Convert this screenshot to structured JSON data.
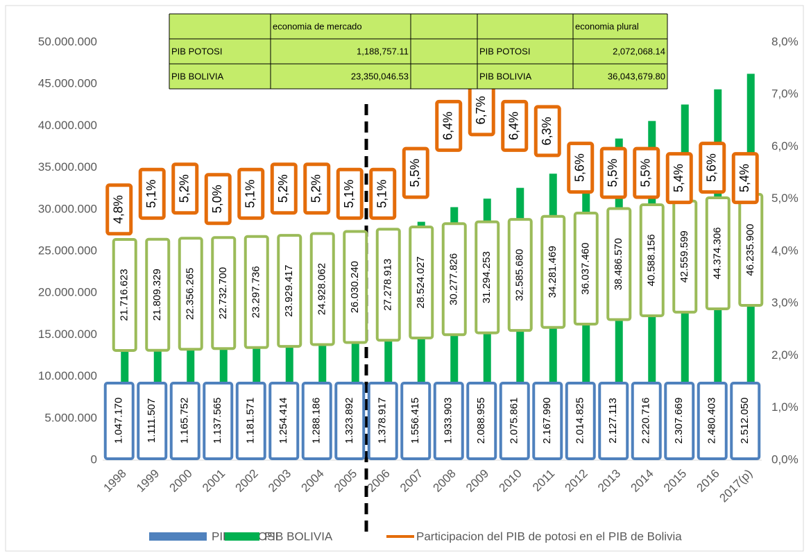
{
  "chart_data": {
    "type": "bar",
    "categories": [
      "1998",
      "1999",
      "2000",
      "2001",
      "2002",
      "2003",
      "2004",
      "2005",
      "2006",
      "2007",
      "2008",
      "2009",
      "2010",
      "2011",
      "2012",
      "2013",
      "2014",
      "2015",
      "2016",
      "2017(p)"
    ],
    "series": [
      {
        "name": "PIB POTOSI",
        "color": "#4f81bd",
        "values": [
          1047170,
          1111507,
          1165752,
          1137565,
          1181571,
          1254414,
          1288186,
          1323892,
          1378917,
          1556415,
          1933903,
          2088955,
          2075861,
          2167990,
          2014825,
          2127113,
          2220716,
          2307669,
          2480403,
          2512050
        ],
        "value_labels": [
          "1.047.170",
          "1.111.507",
          "1.165.752",
          "1.137.565",
          "1.181.571",
          "1.254.414",
          "1.288.186",
          "1.323.892",
          "1.378.917",
          "1.556.415",
          "1.933.903",
          "2.088.955",
          "2.075.861",
          "2.167.990",
          "2.014.825",
          "2.127.113",
          "2.220.716",
          "2.307.669",
          "2.480.403",
          "2.512.050"
        ]
      },
      {
        "name": "PIB BOLIVIA",
        "color": "#00b050",
        "values": [
          21716623,
          21809329,
          22356265,
          22732700,
          23297736,
          23929417,
          24928062,
          26030240,
          27278913,
          28524027,
          30277826,
          31294253,
          32585680,
          34281469,
          36037460,
          38486570,
          40588156,
          42559599,
          44374306,
          46235900
        ],
        "value_labels": [
          "21.716.623",
          "21.809.329",
          "22.356.265",
          "22.732.700",
          "23.297.736",
          "23.929.417",
          "24.928.062",
          "26.030.240",
          "27.278.913",
          "28.524.027",
          "30.277.826",
          "31.294.253",
          "32.585.680",
          "34.281.469",
          "36.037.460",
          "38.486.570",
          "40.588.156",
          "42.559.599",
          "44.374.306",
          "46.235.900"
        ]
      },
      {
        "name": "Participacion del PIB de potosi en el PIB de Bolivia",
        "color": "#e46c0a",
        "axis": "y2",
        "type": "line",
        "values": [
          4.8,
          5.1,
          5.2,
          5.0,
          5.1,
          5.2,
          5.2,
          5.1,
          5.1,
          5.5,
          6.4,
          6.7,
          6.4,
          6.3,
          5.6,
          5.5,
          5.5,
          5.4,
          5.6,
          5.4
        ],
        "value_labels": [
          "4,8%",
          "5,1%",
          "5,2%",
          "5,0%",
          "5,1%",
          "5,2%",
          "5,2%",
          "5,1%",
          "5,1%",
          "5,5%",
          "6,4%",
          "6,7%",
          "6,4%",
          "6,3%",
          "5,6%",
          "5,5%",
          "5,5%",
          "5,4%",
          "5,6%",
          "5,4%"
        ]
      }
    ],
    "ylim": [
      0,
      50000000
    ],
    "yticks": [
      0,
      {
        "value": 5000000,
        "label": "5.000.000"
      },
      {
        "value": 10000000,
        "label": "10.000.000"
      },
      {
        "value": 15000000,
        "label": "15.000.000"
      },
      {
        "value": 20000000,
        "label": "20.000.000"
      },
      {
        "value": 25000000,
        "label": "25.000.000"
      },
      {
        "value": 30000000,
        "label": "30.000.000"
      },
      {
        "value": 35000000,
        "label": "35.000.000"
      },
      {
        "value": 40000000,
        "label": "40.000.000"
      },
      {
        "value": 45000000,
        "label": "45.000.000"
      },
      {
        "value": 50000000,
        "label": "50.000.000"
      }
    ],
    "y2lim": [
      0,
      8
    ],
    "y2ticks": [
      {
        "value": 0,
        "label": "0,0%"
      },
      {
        "value": 1,
        "label": "1,0%"
      },
      {
        "value": 2,
        "label": "2,0%"
      },
      {
        "value": 3,
        "label": "3,0%"
      },
      {
        "value": 4,
        "label": "4,0%"
      },
      {
        "value": 5,
        "label": "5,0%"
      },
      {
        "value": 6,
        "label": "6,0%"
      },
      {
        "value": 7,
        "label": "7,0%"
      },
      {
        "value": 8,
        "label": "8,0%"
      }
    ],
    "legend": "bottom",
    "table": {
      "left": {
        "header": "economia de mercado",
        "rows": [
          [
            "PIB POTOSI",
            "1,188,757.11"
          ],
          [
            "PIB BOLIVIA",
            "23,350,046.53"
          ]
        ]
      },
      "right": {
        "header": "economia plural",
        "rows": [
          [
            "PIB POTOSI",
            "2,072,068.14"
          ],
          [
            "PIB BOLIVIA",
            "36,043,679.80"
          ]
        ]
      }
    }
  }
}
